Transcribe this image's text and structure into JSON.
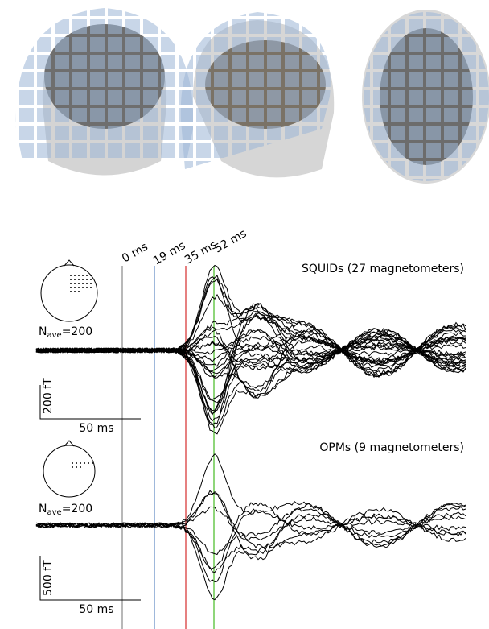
{
  "times": [
    "0 ms",
    "19 ms",
    "35 ms",
    "52 ms"
  ],
  "panels": [
    {
      "title": "SQUIDs (27 magnetometers)",
      "nave": {
        "base": "N",
        "sub": "ave",
        "rest": "=200"
      },
      "amplitude_bar": "200 fT",
      "time_bar": "50 ms"
    },
    {
      "title": "OPMs (9 magnetometers)",
      "nave": {
        "base": "N",
        "sub": "ave",
        "rest": "=200"
      },
      "amplitude_bar": "500 fT",
      "time_bar": "50 ms"
    }
  ]
}
